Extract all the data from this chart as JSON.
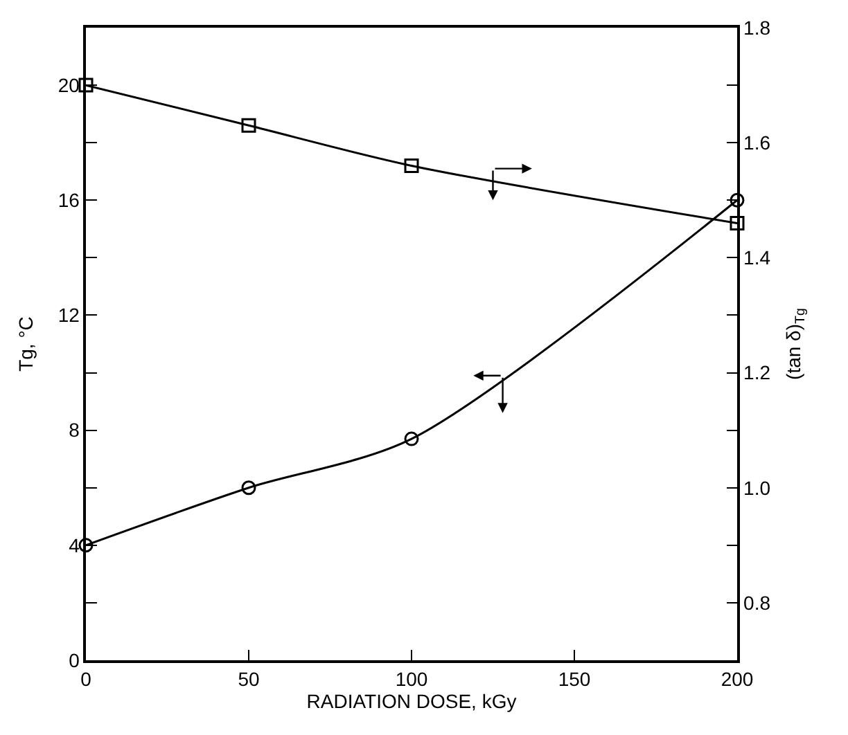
{
  "chart_data": {
    "type": "line",
    "xlabel": "RADIATION DOSE, kGy",
    "ylabel": "Tg, °C",
    "y2label": "(tan δ)$_{Tg}$",
    "x": [
      0,
      50,
      100,
      200
    ],
    "series": [
      {
        "color": "#000000",
        "marker": "circle",
        "values": [
          4,
          6,
          7.7,
          16
        ]
      },
      {
        "color": "#000000",
        "marker": "square",
        "axis": "y2",
        "values": [
          1.7,
          1.63,
          1.56,
          1.46
        ]
      }
    ],
    "xlim": [
      0,
      200
    ],
    "xticks": [
      0,
      50,
      100,
      150,
      200
    ],
    "ylim": [
      0,
      22
    ],
    "yticks": [
      0,
      {
        "value": 2,
        "label": null
      },
      4,
      {
        "value": 6,
        "label": null
      },
      8,
      {
        "value": 10,
        "label": null
      },
      12,
      {
        "value": 14,
        "label": null
      },
      16,
      {
        "value": 18,
        "label": null
      },
      20
    ],
    "y2lim": [
      0.7,
      1.8
    ],
    "y2ticks": [
      {
        "value": 0.8,
        "label": "0.8"
      },
      {
        "value": 0.9,
        "label": null
      },
      {
        "value": 1.0,
        "label": "1.0"
      },
      {
        "value": 1.1,
        "label": null
      },
      {
        "value": 1.2,
        "label": "1.2"
      },
      {
        "value": 1.3,
        "label": null
      },
      {
        "value": 1.4,
        "label": "1.4"
      },
      {
        "value": 1.5,
        "label": null
      },
      {
        "value": 1.6,
        "label": "1.6"
      },
      {
        "value": 1.7,
        "label": null
      },
      {
        "value": 1.8,
        "label": "1.8"
      }
    ],
    "grid": false,
    "line_style": "solid"
  }
}
